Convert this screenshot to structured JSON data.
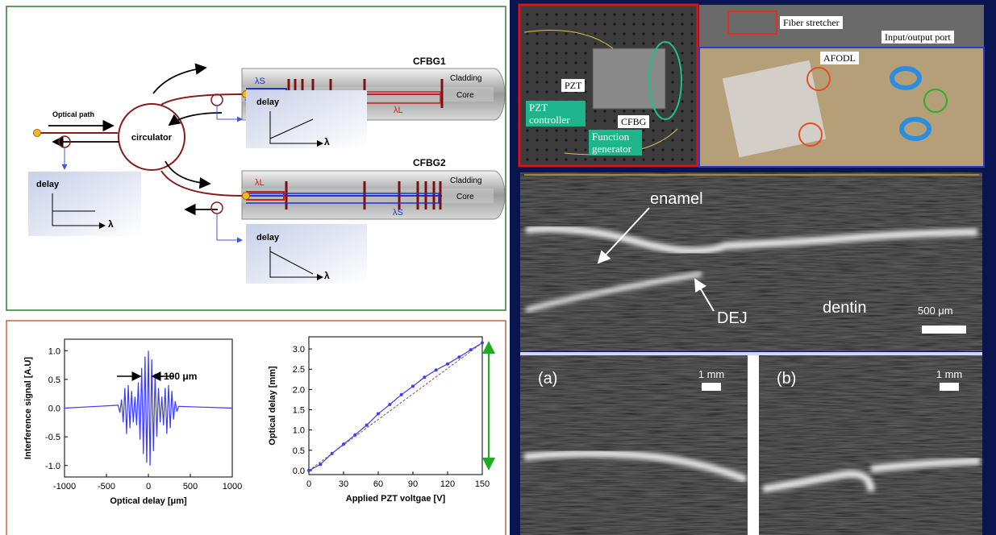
{
  "diagram": {
    "cfbg1": {
      "title": "CFBG1",
      "cladding": "Cladding",
      "core": "Core",
      "lambda_s": "λS",
      "lambda_l": "λL"
    },
    "cfbg2": {
      "title": "CFBG2",
      "cladding": "Cladding",
      "core": "Core",
      "lambda_s": "λS",
      "lambda_l": "λL"
    },
    "optical_path": "Optical path",
    "circulator": "circulator",
    "delay_plots": [
      {
        "y_label": "delay",
        "x_label": "λ"
      },
      {
        "y_label": "delay",
        "x_label": "λ"
      },
      {
        "y_label": "delay",
        "x_label": "λ"
      }
    ]
  },
  "photos": {
    "setup": [
      "PZT",
      "PZT controller",
      "CFBG",
      "Function generator"
    ],
    "overview": [
      "Fiber stretcher",
      "Input/output port",
      "AFODL"
    ]
  },
  "oct": {
    "labels": [
      "enamel",
      "DEJ",
      "dentin"
    ],
    "scale": "500 μm"
  },
  "panels": [
    {
      "label": "(a)",
      "scale": "1 mm"
    },
    {
      "label": "(b)",
      "scale": "1 mm"
    }
  ],
  "chart_data": [
    {
      "type": "line",
      "x_label": "Optical delay [μm]",
      "y_label": "Interference signal [A.U]",
      "annotation": "~100 μm",
      "xlim": [
        -1000,
        1000
      ],
      "xticks": [
        -1000,
        -500,
        0,
        500,
        1000
      ],
      "ylim": [
        -1.2,
        1.2
      ],
      "yticks": [
        {
          "value": -1,
          "label": "-1.0"
        },
        -0.5,
        {
          "value": 0,
          "label": "0.0"
        },
        0.5,
        {
          "value": 1,
          "label": "1.0"
        }
      ],
      "series": [
        {
          "color": "#3b3bff",
          "x": [
            -1000,
            -360,
            -340,
            -320,
            -300,
            -280,
            -260,
            -240,
            -220,
            -200,
            -180,
            -160,
            -140,
            -120,
            -100,
            -80,
            -60,
            -40,
            -20,
            0,
            20,
            40,
            60,
            80,
            100,
            120,
            140,
            160,
            180,
            200,
            220,
            240,
            260,
            280,
            300,
            320,
            340,
            360,
            1000
          ],
          "values": [
            0,
            0.05,
            -0.08,
            0.15,
            -0.25,
            0.35,
            -0.45,
            0.4,
            -0.35,
            0.3,
            -0.25,
            0.2,
            -0.3,
            0.45,
            -0.55,
            0.7,
            -0.8,
            0.9,
            -0.95,
            1.0,
            -1.0,
            0.85,
            -0.75,
            0.6,
            -0.5,
            0.35,
            -0.25,
            0.2,
            -0.3,
            0.35,
            -0.45,
            0.4,
            -0.35,
            0.3,
            -0.2,
            0.12,
            -0.06,
            0.03,
            0
          ]
        }
      ]
    },
    {
      "type": "line",
      "x_label": "Applied PZT voltgae [V]",
      "y_label": "Optical delay [mm]",
      "xlim": [
        0,
        150
      ],
      "xticks": [
        0,
        30,
        60,
        90,
        120,
        150
      ],
      "ylim": [
        -0.1,
        3.3
      ],
      "yticks": [
        {
          "value": 0,
          "label": "0.0"
        },
        0.5,
        {
          "value": 1,
          "label": "1.0"
        },
        1.5,
        {
          "value": 2,
          "label": "2.0"
        },
        2.5,
        {
          "value": 3,
          "label": "3.0"
        }
      ],
      "series": [
        {
          "color": "#3b3bff",
          "marker": true,
          "x": [
            0,
            10,
            20,
            30,
            40,
            50,
            60,
            70,
            80,
            90,
            100,
            110,
            120,
            130,
            140,
            150
          ],
          "values": [
            0,
            0.15,
            0.42,
            0.65,
            0.88,
            1.12,
            1.4,
            1.63,
            1.87,
            2.08,
            2.3,
            2.48,
            2.63,
            2.8,
            2.98,
            3.15
          ]
        },
        {
          "color": "#8a4a4a",
          "dash": true,
          "x": [
            0,
            150
          ],
          "values": [
            0,
            3.15
          ]
        }
      ]
    }
  ]
}
